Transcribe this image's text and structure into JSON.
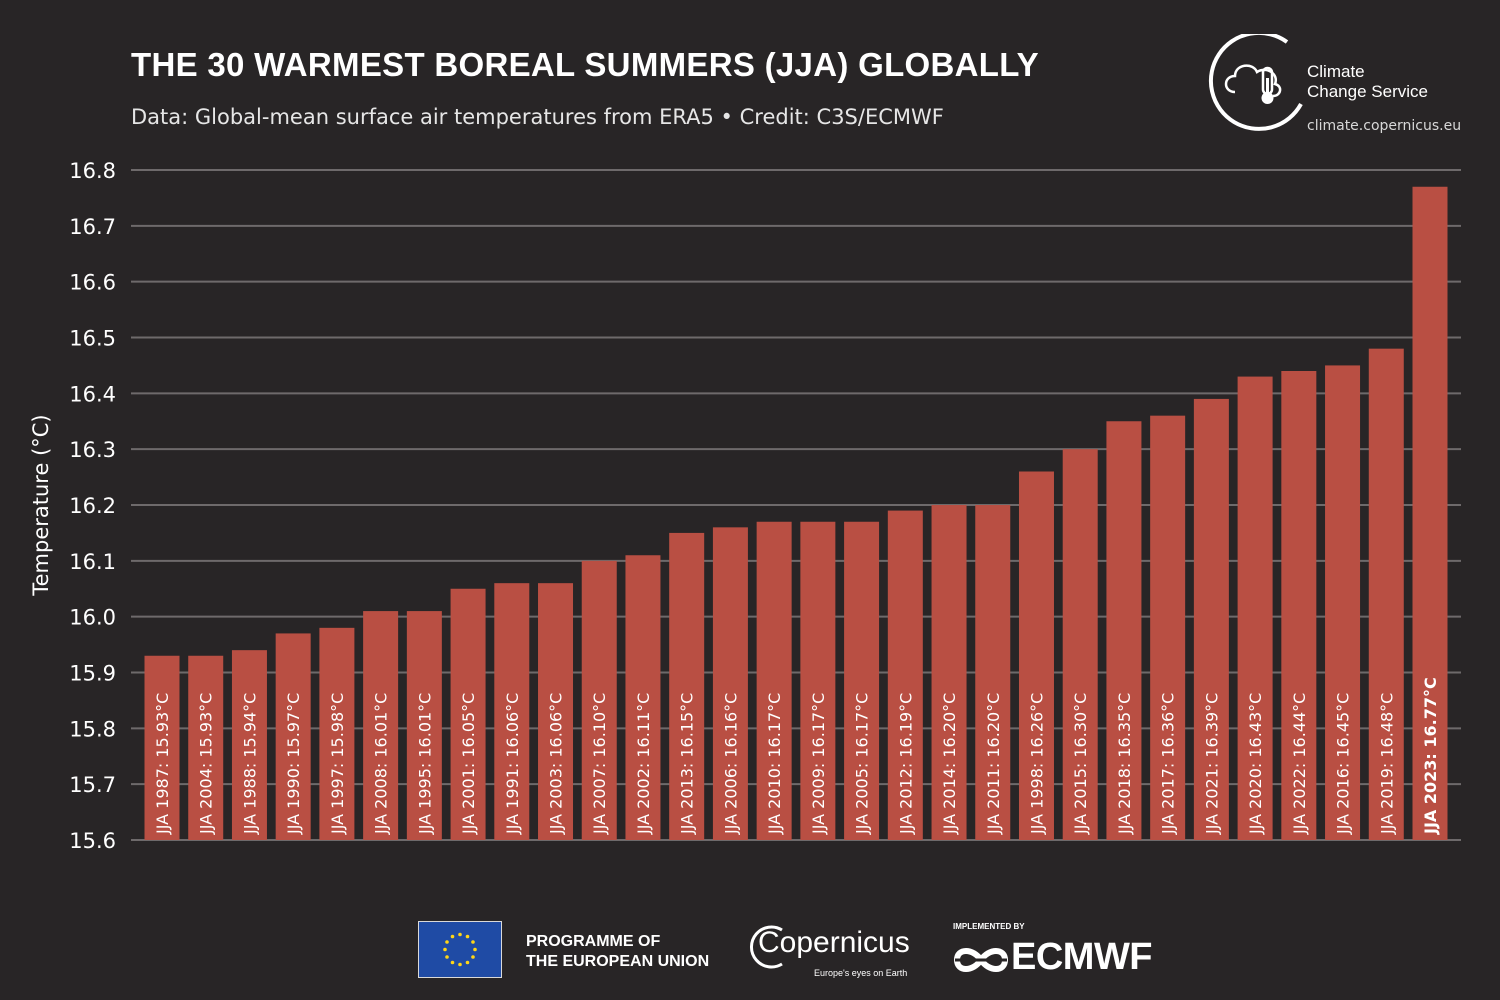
{
  "header": {
    "title": "THE 30 WARMEST BOREAL SUMMERS (JJA) GLOBALLY",
    "subtitle": "Data: Global-mean surface air temperatures from ERA5 • Credit: C3S/ECMWF"
  },
  "c3s_logo": {
    "name_line1": "Climate",
    "name_line2": "Change Service",
    "url": "climate.copernicus.eu",
    "icon": "thermometer-cloud-icon"
  },
  "footer": {
    "eu_line1": "PROGRAMME OF",
    "eu_line2": "THE EUROPEAN UNION",
    "copernicus_word": "Copernicus",
    "copernicus_tagline": "Europe's eyes on Earth",
    "ecmwf_implemented": "IMPLEMENTED BY",
    "ecmwf_word": "ECMWF"
  },
  "colors": {
    "background": "#282526",
    "bar": "#b94f43",
    "grid": "#6e6a6b",
    "text": "#ffffff"
  },
  "chart_data": {
    "type": "bar",
    "title": "THE 30 WARMEST BOREAL SUMMERS (JJA) GLOBALLY",
    "subtitle": "Data: Global-mean surface air temperatures from ERA5 • Credit: C3S/ECMWF",
    "xlabel": "",
    "ylabel": "Temperature (°C)",
    "ylim": [
      15.6,
      16.8
    ],
    "yticks": [
      "15.6",
      "15.7",
      "15.8",
      "15.9",
      "16.0",
      "16.1",
      "16.2",
      "16.3",
      "16.4",
      "16.5",
      "16.6",
      "16.7",
      "16.8"
    ],
    "grid": true,
    "legend": "none",
    "categories": [
      "JJA 1987",
      "JJA 2004",
      "JJA 1988",
      "JJA 1990",
      "JJA 1997",
      "JJA 2008",
      "JJA 1995",
      "JJA 2001",
      "JJA 1991",
      "JJA 2003",
      "JJA 2007",
      "JJA 2002",
      "JJA 2013",
      "JJA 2006",
      "JJA 2010",
      "JJA 2009",
      "JJA 2005",
      "JJA 2012",
      "JJA 2014",
      "JJA 2011",
      "JJA 1998",
      "JJA 2015",
      "JJA 2018",
      "JJA 2017",
      "JJA 2021",
      "JJA 2020",
      "JJA 2022",
      "JJA 2016",
      "JJA 2019",
      "JJA 2023"
    ],
    "values": [
      15.93,
      15.93,
      15.94,
      15.97,
      15.98,
      16.01,
      16.01,
      16.05,
      16.06,
      16.06,
      16.1,
      16.11,
      16.15,
      16.16,
      16.17,
      16.17,
      16.17,
      16.19,
      16.2,
      16.2,
      16.26,
      16.3,
      16.35,
      16.36,
      16.39,
      16.43,
      16.44,
      16.45,
      16.48,
      16.77
    ],
    "bar_labels": [
      "JJA 1987: 15.93°C",
      "JJA 2004: 15.93°C",
      "JJA 1988: 15.94°C",
      "JJA 1990: 15.97°C",
      "JJA 1997: 15.98°C",
      "JJA 2008: 16.01°C",
      "JJA 1995: 16.01°C",
      "JJA 2001: 16.05°C",
      "JJA 1991: 16.06°C",
      "JJA 2003: 16.06°C",
      "JJA 2007: 16.10°C",
      "JJA 2002: 16.11°C",
      "JJA 2013: 16.15°C",
      "JJA 2006: 16.16°C",
      "JJA 2010: 16.17°C",
      "JJA 2009: 16.17°C",
      "JJA 2005: 16.17°C",
      "JJA 2012: 16.19°C",
      "JJA 2014: 16.20°C",
      "JJA 2011: 16.20°C",
      "JJA 1998: 16.26°C",
      "JJA 2015: 16.30°C",
      "JJA 2018: 16.35°C",
      "JJA 2017: 16.36°C",
      "JJA 2021: 16.39°C",
      "JJA 2020: 16.43°C",
      "JJA 2022: 16.44°C",
      "JJA 2016: 16.45°C",
      "JJA 2019: 16.48°C",
      "JJA 2023: 16.77°C"
    ],
    "highlight": "JJA 2023"
  }
}
